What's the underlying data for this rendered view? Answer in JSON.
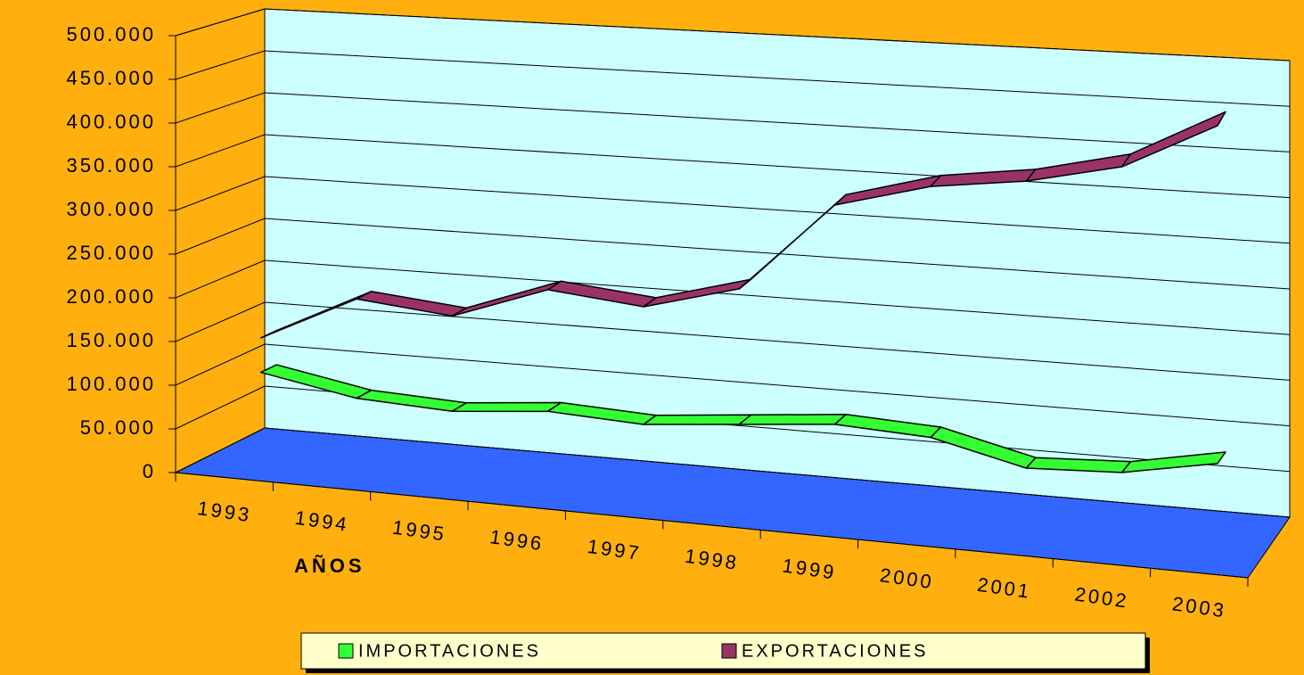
{
  "chart_data": {
    "type": "line3d",
    "x_label": "AÑOS",
    "categories": [
      "1993",
      "1994",
      "1995",
      "1996",
      "1997",
      "1998",
      "1999",
      "2000",
      "2001",
      "2002",
      "2003"
    ],
    "series": [
      {
        "name": "IMPORTACIONES",
        "color": "#33ff33",
        "values": [
          100000,
          80000,
          75000,
          85000,
          80000,
          90000,
          100000,
          95000,
          70000,
          75000,
          95000
        ]
      },
      {
        "name": "EXPORTACIONES",
        "color": "#993366",
        "values": [
          140000,
          195000,
          185000,
          225000,
          215000,
          245000,
          350000,
          380000,
          395000,
          420000,
          475000
        ]
      }
    ],
    "ylim": [
      0,
      500000
    ],
    "yticks": [
      0,
      {
        "value": 50000,
        "label": "50.000"
      },
      {
        "value": 100000,
        "label": "100.000"
      },
      {
        "value": 150000,
        "label": "150.000"
      },
      {
        "value": 200000,
        "label": "200.000"
      },
      {
        "value": 250000,
        "label": "250.000"
      },
      {
        "value": 300000,
        "label": "300.000"
      },
      {
        "value": 350000,
        "label": "350.000"
      },
      {
        "value": 400000,
        "label": "400.000"
      },
      {
        "value": 450000,
        "label": "450.000"
      },
      {
        "value": 500000,
        "label": "500.000"
      }
    ],
    "grid": true,
    "wall_color": "#ccffff",
    "floor_color": "#3366ff",
    "legend": "bottom"
  }
}
